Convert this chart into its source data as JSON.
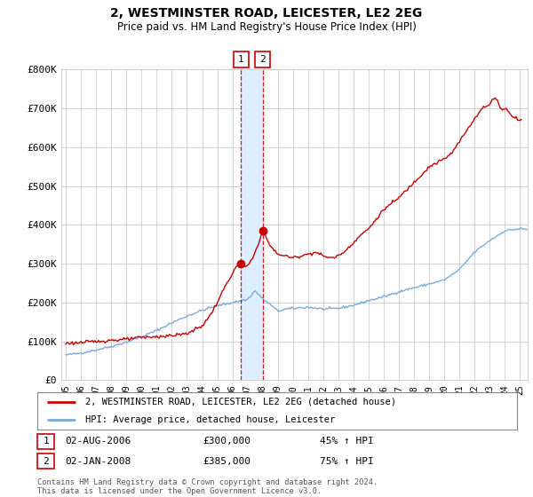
{
  "title": "2, WESTMINSTER ROAD, LEICESTER, LE2 2EG",
  "subtitle": "Price paid vs. HM Land Registry's House Price Index (HPI)",
  "ylabel_ticks": [
    "£0",
    "£100K",
    "£200K",
    "£300K",
    "£400K",
    "£500K",
    "£600K",
    "£700K",
    "£800K"
  ],
  "ylim": [
    0,
    800000
  ],
  "xlim_start": 1994.7,
  "xlim_end": 2025.5,
  "sale1_date": 2006.58,
  "sale1_price": 300000,
  "sale2_date": 2008.0,
  "sale2_price": 385000,
  "sale1_label": "1",
  "sale2_label": "2",
  "legend_line1": "2, WESTMINSTER ROAD, LEICESTER, LE2 2EG (detached house)",
  "legend_line2": "HPI: Average price, detached house, Leicester",
  "ann1_num": "1",
  "ann1_date": "02-AUG-2006",
  "ann1_price": "£300,000",
  "ann1_hpi": "45% ↑ HPI",
  "ann2_num": "2",
  "ann2_date": "02-JAN-2008",
  "ann2_price": "£385,000",
  "ann2_hpi": "75% ↑ HPI",
  "footnote": "Contains HM Land Registry data © Crown copyright and database right 2024.\nThis data is licensed under the Open Government Licence v3.0.",
  "red_color": "#cc0000",
  "blue_color": "#7aaadd",
  "shade_color": "#ddeeff",
  "bg_color": "#ffffff",
  "grid_color": "#cccccc"
}
